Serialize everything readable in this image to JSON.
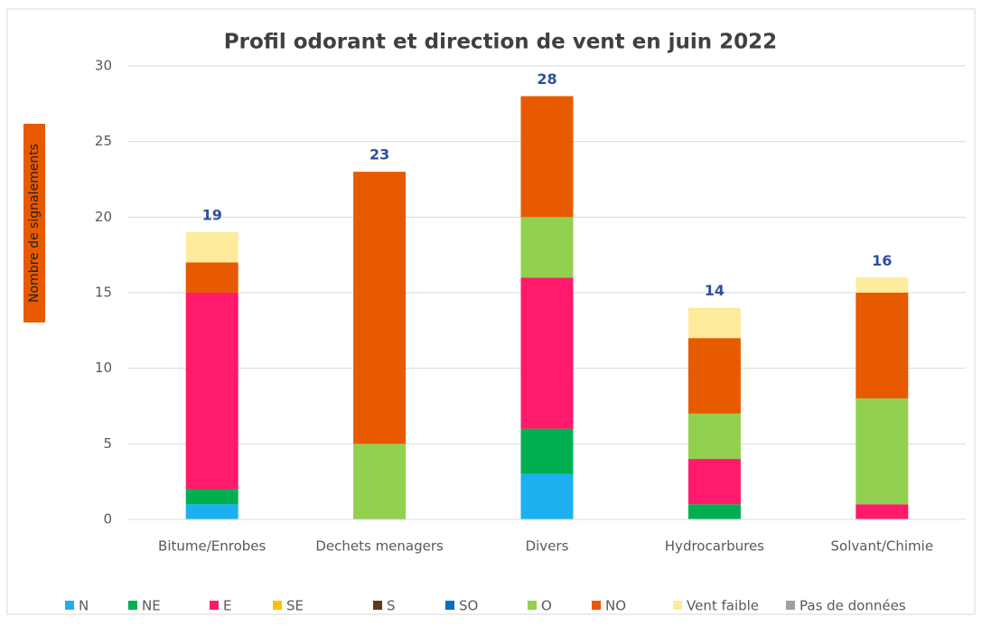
{
  "chart_data": {
    "type": "stacked_bar",
    "title": "Profil odorant et direction de vent en juin 2022",
    "y_label": "Nombre de signalements",
    "categories": [
      "Bitume/Enrobes",
      "Dechets menagers",
      "Divers",
      "Hydrocarbures",
      "Solvant/Chimie"
    ],
    "series": [
      {
        "name": "N",
        "color": "#1cb0f0",
        "values": [
          1,
          0,
          3,
          0,
          0
        ]
      },
      {
        "name": "NE",
        "color": "#00b050",
        "values": [
          1,
          0,
          3,
          1,
          0
        ]
      },
      {
        "name": "E",
        "color": "#ff1a6c",
        "values": [
          13,
          0,
          10,
          3,
          1
        ]
      },
      {
        "name": "SE",
        "color": "#ffc000",
        "values": [
          0,
          0,
          0,
          0,
          0
        ]
      },
      {
        "name": "S",
        "color": "#5c3a1a",
        "values": [
          0,
          0,
          0,
          0,
          0
        ]
      },
      {
        "name": "SO",
        "color": "#0070c0",
        "values": [
          0,
          0,
          0,
          0,
          0
        ]
      },
      {
        "name": "O",
        "color": "#92d050",
        "values": [
          0,
          5,
          4,
          3,
          7
        ]
      },
      {
        "name": "NO",
        "color": "#e85a00",
        "values": [
          2,
          18,
          8,
          5,
          7
        ]
      },
      {
        "name": "Vent faible",
        "color": "#ffeb9c",
        "values": [
          2,
          0,
          0,
          2,
          1
        ]
      },
      {
        "name": "Pas de données",
        "color": "#a0a0a0",
        "values": [
          0,
          0,
          0,
          0,
          0
        ]
      }
    ],
    "totals": [
      19,
      23,
      28,
      14,
      16
    ],
    "ylim": [
      0,
      30
    ],
    "yticks": [
      0,
      5,
      10,
      15,
      20,
      25,
      30
    ],
    "grid": true,
    "legend": "bottom"
  }
}
